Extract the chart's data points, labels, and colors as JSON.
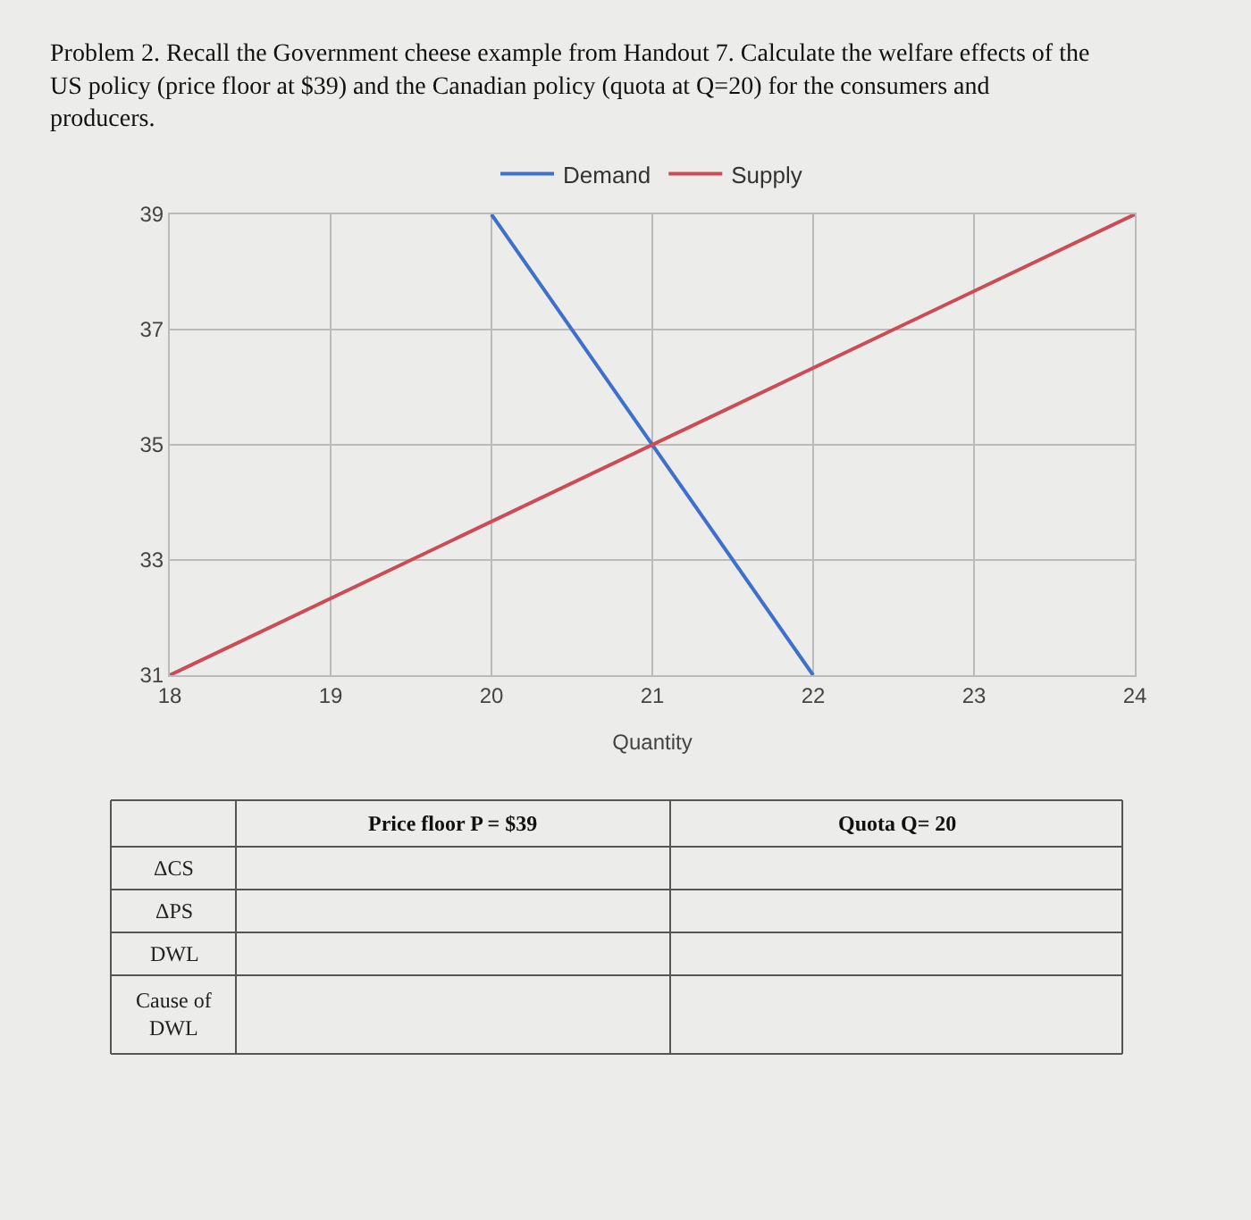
{
  "chart_data": {
    "type": "line",
    "title": "Problem 2. Recall the Government cheese example from Handout 7. Calculate the welfare effects of the US policy (price floor at $39) and the Canadian policy (quota at Q=20) for the consumers and producers.",
    "xlabel": "Quantity",
    "series": [
      {
        "name": "Demand",
        "color": "#3d6fcc",
        "x": [
          20,
          22
        ],
        "values": [
          39,
          31
        ]
      },
      {
        "name": "Supply",
        "color": "#cc4b55",
        "x": [
          18,
          24
        ],
        "values": [
          31,
          39
        ]
      }
    ],
    "xlim": [
      18,
      24
    ],
    "xticks": [
      18,
      19,
      20,
      21,
      22,
      23,
      24
    ],
    "ylim": [
      31,
      39
    ],
    "yticks": [
      31,
      33,
      35,
      37,
      39
    ],
    "grid": true,
    "legend": "top",
    "marker": "none",
    "line_style": "solid",
    "annotations": [
      "Price floor P = $39",
      "Quota Q= 20",
      "ΔCS",
      "ΔPS",
      "DWL",
      "Cause of DWL"
    ]
  }
}
